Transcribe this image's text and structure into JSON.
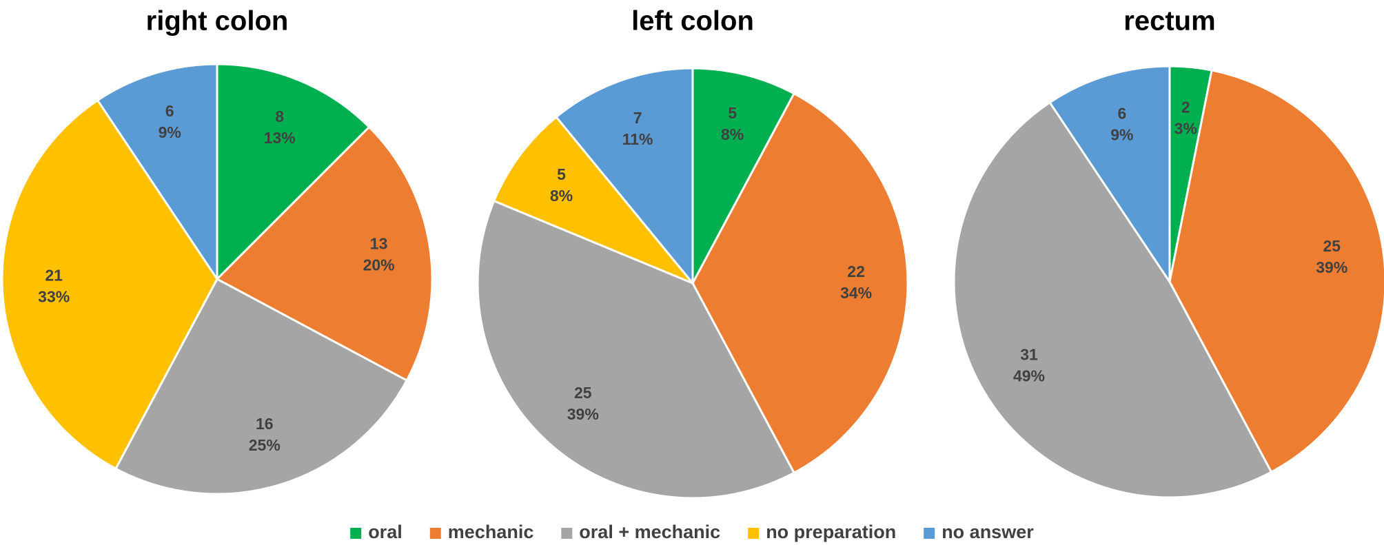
{
  "chart_data": [
    {
      "type": "pie",
      "title": "right colon",
      "slices": [
        {
          "name": "oral",
          "value": 8,
          "percent": "13%"
        },
        {
          "name": "mechanic",
          "value": 13,
          "percent": "20%"
        },
        {
          "name": "oral + mechanic",
          "value": 16,
          "percent": "25%"
        },
        {
          "name": "no preparation",
          "value": 21,
          "percent": "33%"
        },
        {
          "name": "no answer",
          "value": 6,
          "percent": "9%"
        }
      ]
    },
    {
      "type": "pie",
      "title": "left colon",
      "slices": [
        {
          "name": "oral",
          "value": 5,
          "percent": "8%"
        },
        {
          "name": "mechanic",
          "value": 22,
          "percent": "34%"
        },
        {
          "name": "oral + mechanic",
          "value": 25,
          "percent": "39%"
        },
        {
          "name": "no preparation",
          "value": 5,
          "percent": "8%"
        },
        {
          "name": "no answer",
          "value": 7,
          "percent": "11%"
        }
      ]
    },
    {
      "type": "pie",
      "title": "rectum",
      "slices": [
        {
          "name": "oral",
          "value": 2,
          "percent": "3%"
        },
        {
          "name": "mechanic",
          "value": 25,
          "percent": "39%"
        },
        {
          "name": "oral + mechanic",
          "value": 31,
          "percent": "49%"
        },
        {
          "name": "no preparation",
          "value": 0,
          "percent": "0%"
        },
        {
          "name": "no answer",
          "value": 6,
          "percent": "9%"
        }
      ]
    }
  ],
  "legend": {
    "placement": "bottom",
    "items": [
      {
        "label": "oral",
        "color": "#00B050"
      },
      {
        "label": "mechanic",
        "color": "#ED7D31"
      },
      {
        "label": "oral + mechanic",
        "color": "#A5A5A5"
      },
      {
        "label": "no preparation",
        "color": "#FFC000"
      },
      {
        "label": "no answer",
        "color": "#5B9BD5"
      }
    ]
  }
}
